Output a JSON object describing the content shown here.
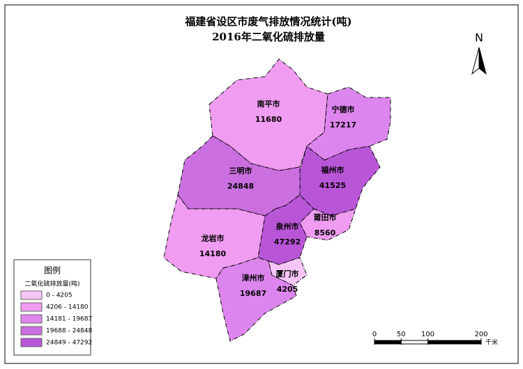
{
  "header": {
    "title": "福建省设区市废气排放情况统计(吨)",
    "subtitle": "2016年二氧化硫排放量"
  },
  "north": "N",
  "regions": [
    {
      "name": "南平市",
      "value": 11680,
      "color": "#f09cf0"
    },
    {
      "name": "宁德市",
      "value": 17217,
      "color": "#dd85ee"
    },
    {
      "name": "福州市",
      "value": 41525,
      "color": "#b956d8"
    },
    {
      "name": "三明市",
      "value": 24848,
      "color": "#cb6fe0"
    },
    {
      "name": "莆田市",
      "value": 8560,
      "color": "#f09cf0"
    },
    {
      "name": "泉州市",
      "value": 47292,
      "color": "#b956d8"
    },
    {
      "name": "龙岩市",
      "value": 14180,
      "color": "#f09cf0"
    },
    {
      "name": "漳州市",
      "value": 19687,
      "color": "#dd85ee"
    },
    {
      "name": "厦门市",
      "value": 4205,
      "color": "#f7c6f7"
    }
  ],
  "legend": {
    "title": "图例",
    "subtitle": "二氧化硫排放量(吨)",
    "classes": [
      {
        "label": "0 - 4205",
        "color": "#f7c6f7"
      },
      {
        "label": "4206 - 14180",
        "color": "#f09cf0"
      },
      {
        "label": "14181 - 19687",
        "color": "#dd85ee"
      },
      {
        "label": "19688 - 24848",
        "color": "#cb6fe0"
      },
      {
        "label": "24849 - 47292",
        "color": "#b956d8"
      }
    ]
  },
  "scale": {
    "ticks": [
      0,
      50,
      100,
      200
    ],
    "xlim": [
      0,
      200
    ],
    "unit": "千米"
  }
}
